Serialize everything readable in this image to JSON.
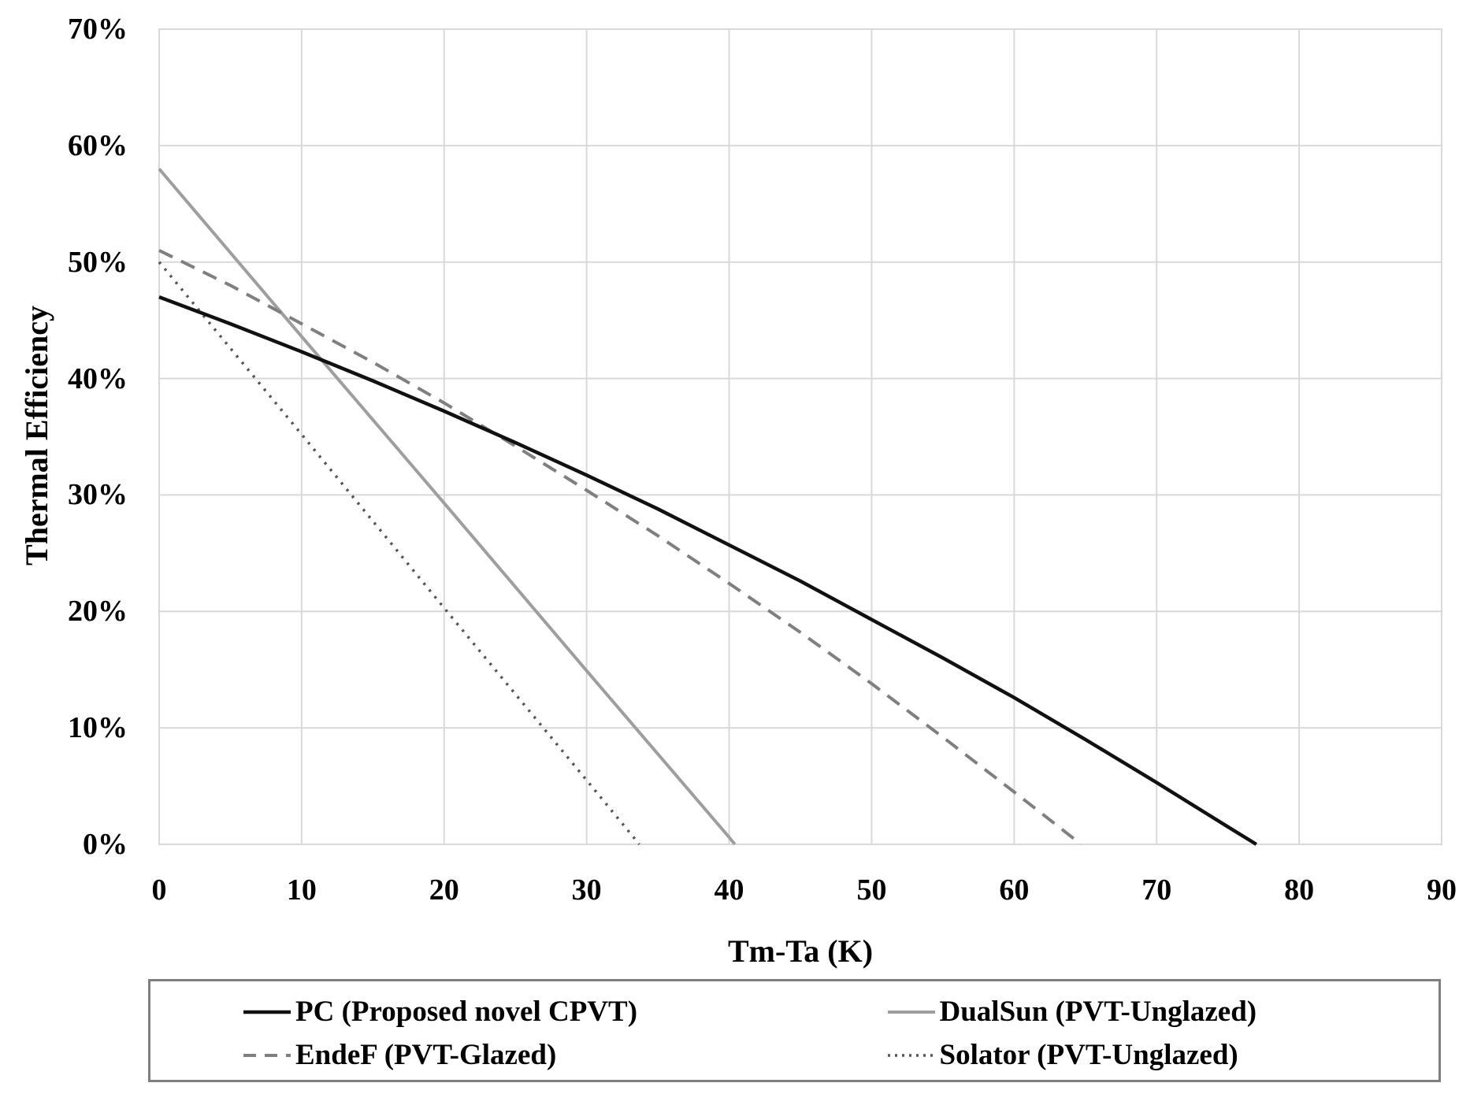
{
  "chart_data": {
    "type": "line",
    "title": "",
    "xlabel": "Tm-Ta (K)",
    "ylabel": "Thermal Efficiency",
    "xlim": [
      0,
      90
    ],
    "ylim": [
      0,
      70
    ],
    "y_unit": "percent",
    "grid": true,
    "legend_position": "bottom-outside",
    "x_ticks": {
      "values": [
        0,
        10,
        20,
        30,
        40,
        50,
        60,
        70,
        80,
        90
      ],
      "labels": [
        "0",
        "10",
        "20",
        "30",
        "40",
        "50",
        "60",
        "70",
        "80",
        "90"
      ]
    },
    "y_ticks": {
      "values": [
        0,
        10,
        20,
        30,
        40,
        50,
        60,
        70
      ],
      "labels": [
        "0%",
        "10%",
        "20%",
        "30%",
        "40%",
        "50%",
        "60%",
        "70%"
      ]
    },
    "series": [
      {
        "name": "PC (Proposed novel CPVT)",
        "slug": "pc",
        "style": "solid",
        "color": "#111111",
        "width": 4.5,
        "points": [
          [
            0,
            47.0
          ],
          [
            5,
            44.7
          ],
          [
            10,
            42.3
          ],
          [
            15,
            39.8
          ],
          [
            20,
            37.2
          ],
          [
            25,
            34.5
          ],
          [
            30,
            31.7
          ],
          [
            35,
            28.8
          ],
          [
            40,
            25.7
          ],
          [
            45,
            22.6
          ],
          [
            50,
            19.3
          ],
          [
            55,
            16.0
          ],
          [
            60,
            12.6
          ],
          [
            65,
            9.0
          ],
          [
            70,
            5.3
          ],
          [
            75,
            1.5
          ],
          [
            77,
            0
          ]
        ]
      },
      {
        "name": "DualSun (PVT-Unglazed)",
        "slug": "dualsun",
        "style": "solid",
        "color": "#9e9e9e",
        "width": 4,
        "points": [
          [
            0,
            58.0
          ],
          [
            10,
            43.6
          ],
          [
            20,
            29.3
          ],
          [
            30,
            14.9
          ],
          [
            40,
            0.6
          ],
          [
            40.4,
            0
          ]
        ]
      },
      {
        "name": "EndeF (PVT-Glazed)",
        "slug": "endef",
        "style": "dashed",
        "color": "#7f7f7f",
        "width": 4,
        "points": [
          [
            0,
            51.0
          ],
          [
            5,
            48.0
          ],
          [
            10,
            44.7
          ],
          [
            15,
            41.4
          ],
          [
            20,
            37.9
          ],
          [
            25,
            34.2
          ],
          [
            30,
            30.4
          ],
          [
            35,
            26.5
          ],
          [
            40,
            22.4
          ],
          [
            45,
            18.2
          ],
          [
            50,
            13.8
          ],
          [
            55,
            9.2
          ],
          [
            60,
            4.5
          ],
          [
            64.7,
            0
          ]
        ]
      },
      {
        "name": "Solator (PVT-Unglazed)",
        "slug": "solator",
        "style": "dotted",
        "color": "#555555",
        "width": 3.5,
        "points": [
          [
            0,
            50.0
          ],
          [
            10,
            35.2
          ],
          [
            20,
            20.3
          ],
          [
            30,
            5.5
          ],
          [
            33.7,
            0
          ]
        ]
      }
    ]
  },
  "colors": {
    "gridline": "#d9d9d9",
    "plot_border": "#d9d9d9",
    "legend_border": "#7f7f7f",
    "text": "#000000",
    "background": "#ffffff"
  }
}
